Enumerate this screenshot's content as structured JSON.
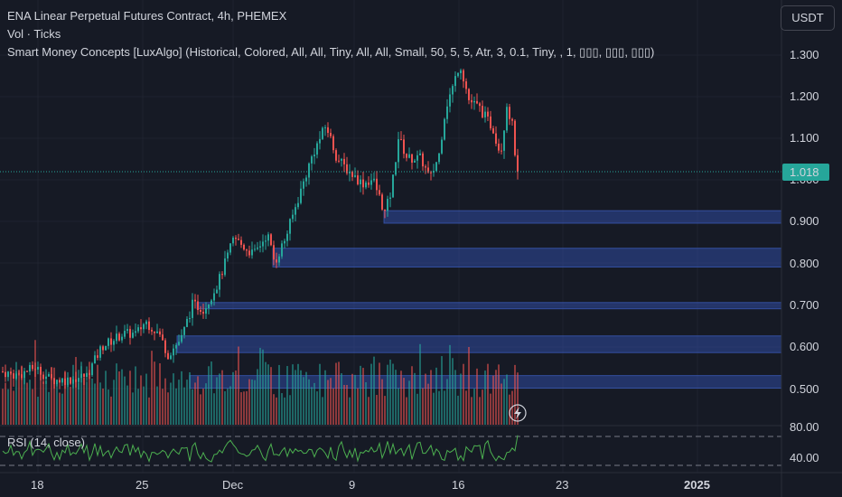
{
  "legend": {
    "title": "ENA Linear Perpetual Futures Contract, 4h, PHEMEX",
    "volume": "Vol · Ticks",
    "indicator": "Smart Money Concepts [LuxAlgo] (Historical, Colored, All, All, Tiny, All, All, Small, 50, 5, 5, Atr, 3, 0.1, Tiny, , 1, ▯▯▯, ▯▯▯, ▯▯▯)"
  },
  "currency_button": "USDT",
  "rsi_label": "RSI (14, close)",
  "price_axis": [
    "1.300",
    "1.200",
    "1.100",
    "1.000",
    "0.900",
    "0.800",
    "0.700",
    "0.600",
    "0.500"
  ],
  "current_price": "1.018",
  "rsi_axis": [
    "80.00",
    "40.00"
  ],
  "time_axis": [
    "18",
    "25",
    "Dec",
    "9",
    "16",
    "23",
    "2025"
  ],
  "colors": {
    "background": "#161a25",
    "up": "#26a69a",
    "down": "#ef5350",
    "order_block": "#2f4aa0",
    "rsi_line": "#4caf50",
    "price_line": "#26a69a"
  },
  "chart_data": {
    "type": "candlestick",
    "series": [
      {
        "name": "ENA Linear Perpetual Futures Contract",
        "price_range": [
          0.47,
          1.35
        ],
        "current": 1.018
      },
      {
        "name": "RSI (14, close)",
        "levels": [
          80,
          40
        ]
      }
    ],
    "order_blocks": [
      [
        0.895,
        0.925
      ],
      [
        0.79,
        0.835
      ],
      [
        0.69,
        0.705
      ],
      [
        0.585,
        0.625
      ],
      [
        0.5,
        0.53
      ]
    ]
  }
}
